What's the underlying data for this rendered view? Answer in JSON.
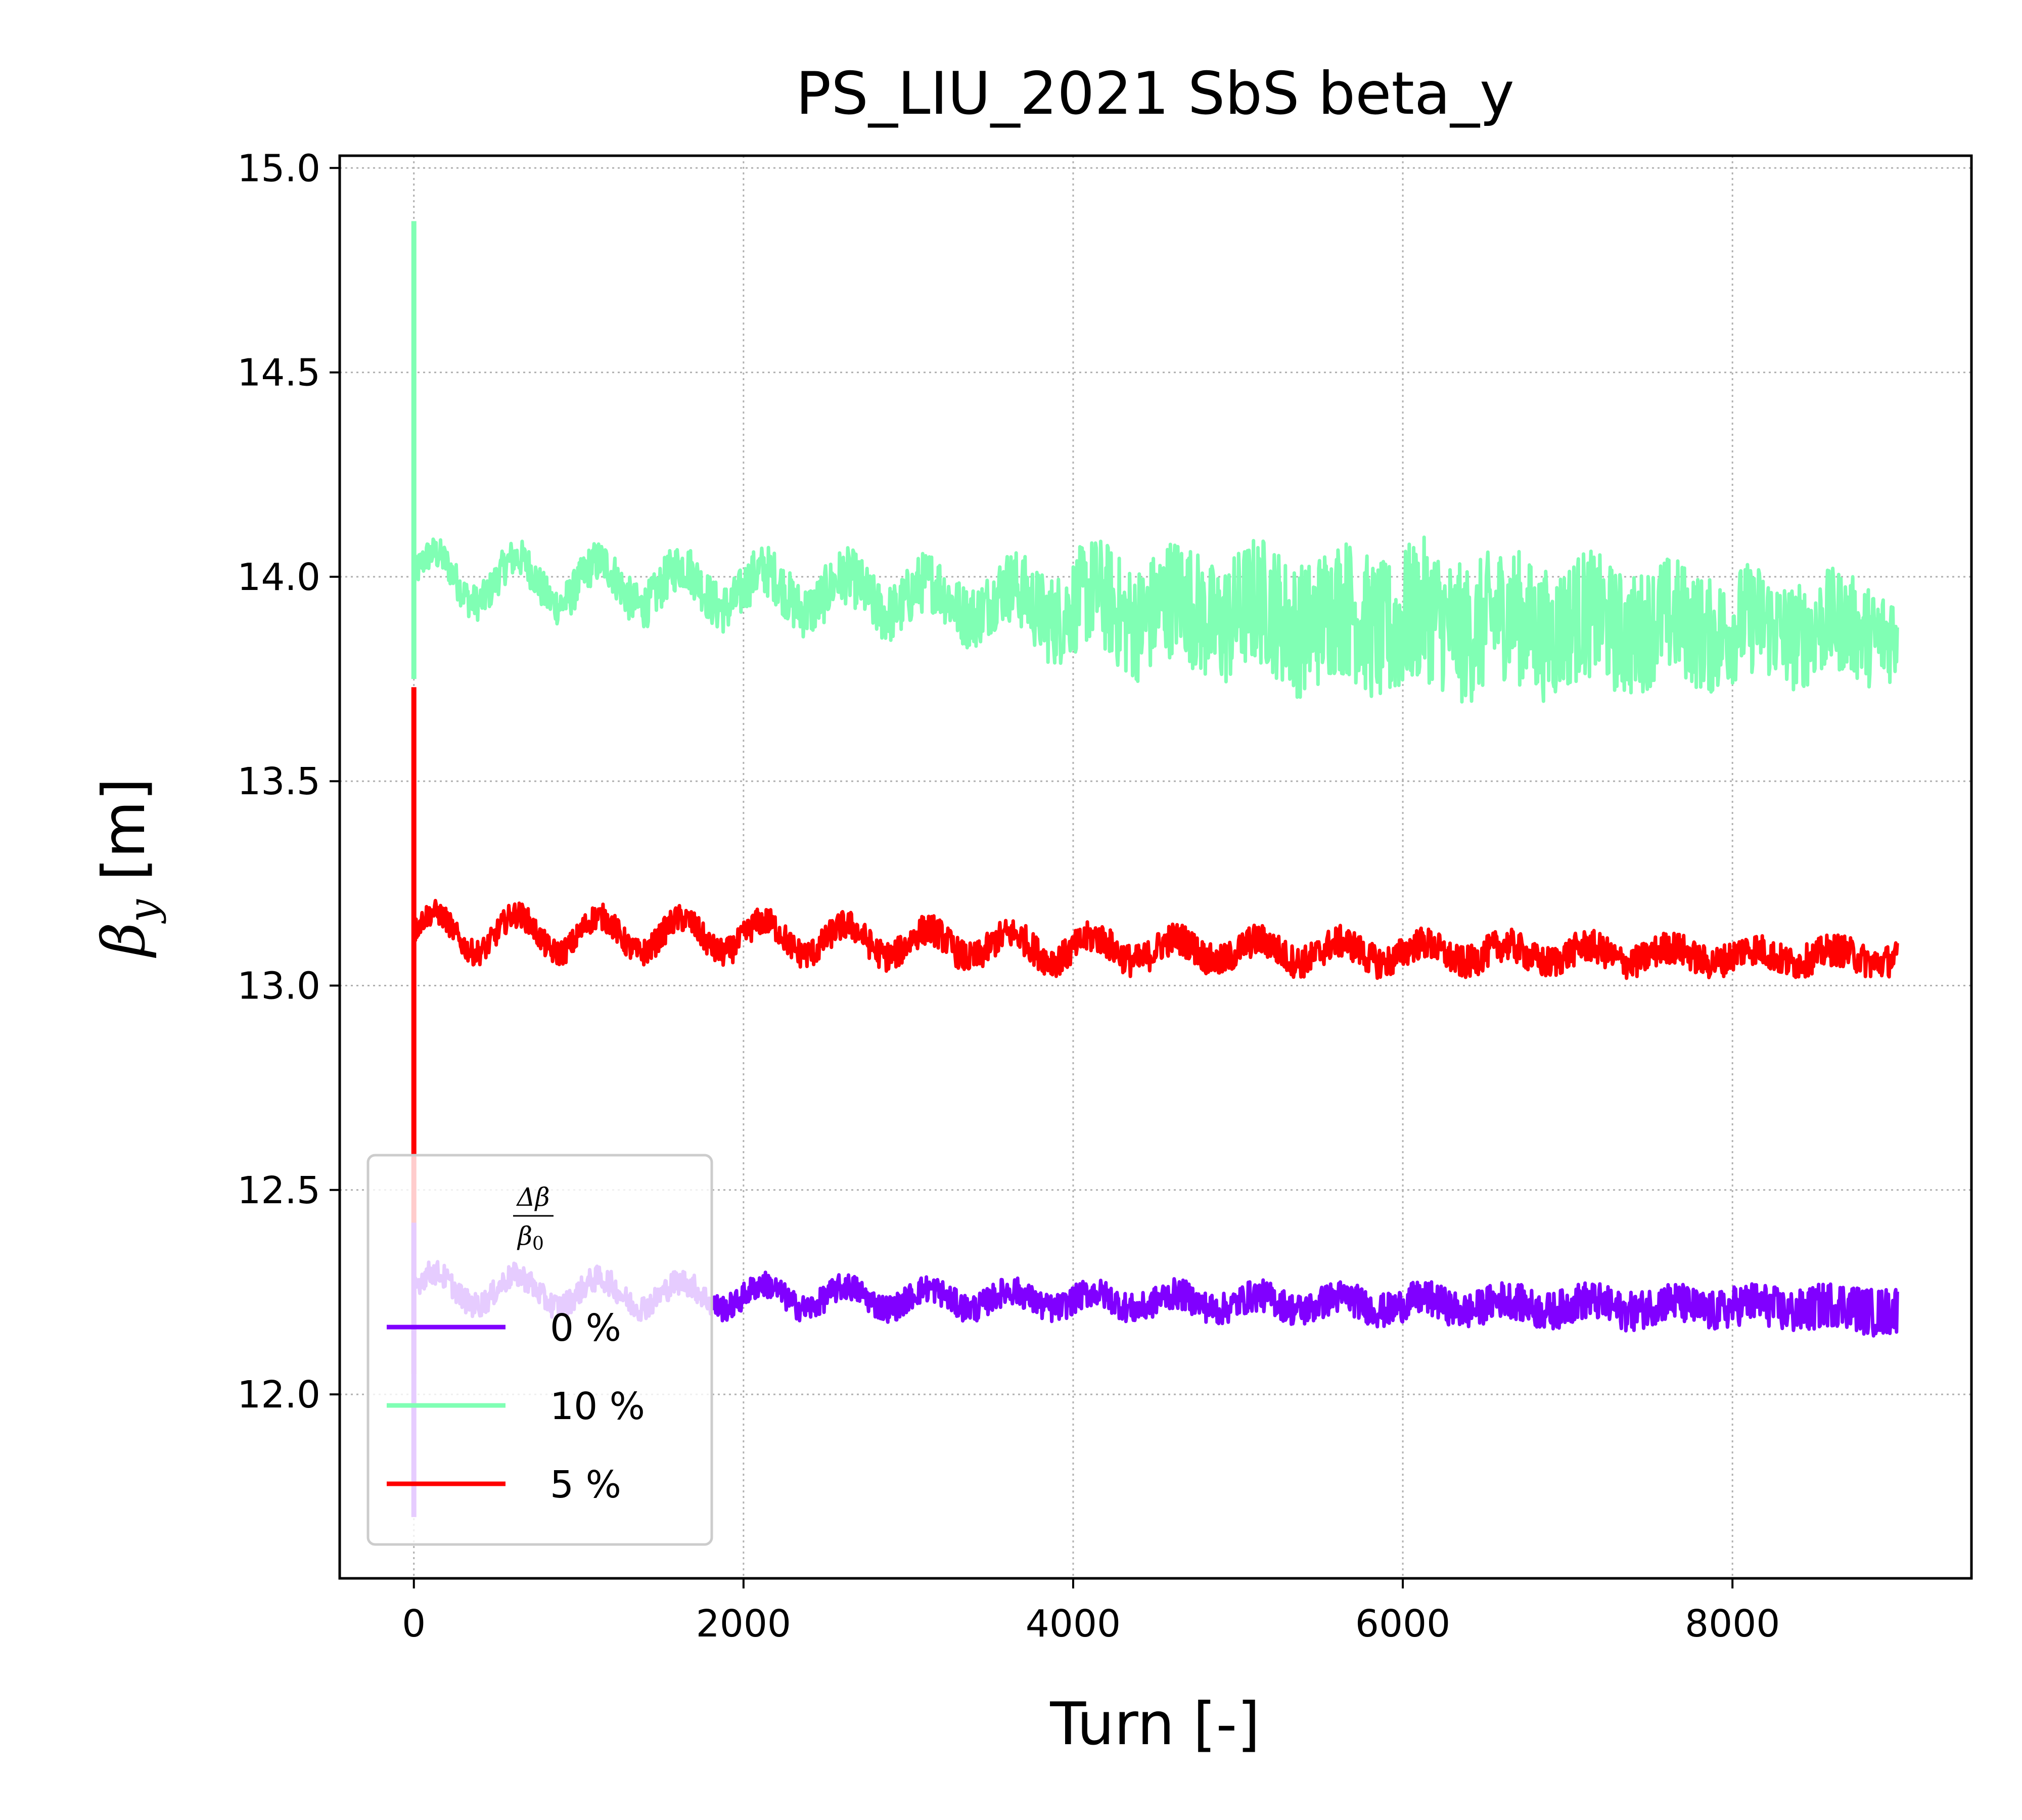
{
  "chart_data": {
    "type": "line",
    "title": "PS_LIU_2021 SbS beta_y",
    "xlabel": "Turn [-]",
    "ylabel": {
      "symbol": "β",
      "subscript": "y",
      "unit": " [m]"
    },
    "xlim": [
      -450,
      9450
    ],
    "ylim": [
      11.55,
      15.03
    ],
    "xticks": [
      0,
      2000,
      4000,
      6000,
      8000
    ],
    "xtick_labels": [
      "0",
      "2000",
      "4000",
      "6000",
      "8000"
    ],
    "yticks": [
      12.0,
      12.5,
      13.0,
      13.5,
      14.0,
      14.5,
      15.0
    ],
    "ytick_labels": [
      "12.0",
      "12.5",
      "13.0",
      "13.5",
      "14.0",
      "14.5",
      "15.0"
    ],
    "grid": true,
    "legend": {
      "placement": "lower-left",
      "title": {
        "num": "Δβ",
        "den": "β",
        "den_sub": "0"
      }
    },
    "series": [
      {
        "name": "0 %",
        "color": "#8000ff",
        "initial": {
          "x": 0,
          "y_range": [
            11.7,
            12.42
          ]
        },
        "x_end": 9000,
        "mean": [
          [
            0,
            12.26
          ],
          [
            2000,
            12.24
          ],
          [
            4000,
            12.23
          ],
          [
            6000,
            12.22
          ],
          [
            9000,
            12.21
          ]
        ],
        "band_half_width": [
          [
            0,
            0.03
          ],
          [
            4000,
            0.035
          ],
          [
            8000,
            0.05
          ],
          [
            9000,
            0.06
          ]
        ],
        "oscillation": {
          "period": 500,
          "amplitude": [
            [
              0,
              0.04
            ],
            [
              4000,
              0.02
            ],
            [
              9000,
              0.01
            ]
          ]
        },
        "overall_range": [
          12.12,
          12.33
        ]
      },
      {
        "name": "10 %",
        "color": "#80ffb4",
        "initial": {
          "x": 0,
          "y_range": [
            13.75,
            14.87
          ]
        },
        "x_end": 9000,
        "mean": [
          [
            0,
            14.0
          ],
          [
            2000,
            13.97
          ],
          [
            4000,
            13.93
          ],
          [
            6000,
            13.89
          ],
          [
            9000,
            13.87
          ]
        ],
        "band_half_width": [
          [
            0,
            0.04
          ],
          [
            3500,
            0.08
          ],
          [
            4200,
            0.14
          ],
          [
            6000,
            0.18
          ],
          [
            9000,
            0.12
          ]
        ],
        "oscillation": {
          "period": 500,
          "amplitude": [
            [
              0,
              0.06
            ],
            [
              3500,
              0.04
            ],
            [
              9000,
              0.02
            ]
          ]
        },
        "overall_range": [
          13.63,
          14.15
        ]
      },
      {
        "name": "5 %",
        "color": "#ff0000",
        "initial": {
          "x": 0,
          "y_range": [
            12.05,
            13.73
          ]
        },
        "x_end": 9000,
        "mean": [
          [
            0,
            13.13
          ],
          [
            2000,
            13.12
          ],
          [
            4000,
            13.09
          ],
          [
            6000,
            13.08
          ],
          [
            9000,
            13.07
          ]
        ],
        "band_half_width": [
          [
            0,
            0.03
          ],
          [
            4000,
            0.04
          ],
          [
            9000,
            0.04
          ]
        ],
        "oscillation": {
          "period": 500,
          "amplitude": [
            [
              0,
              0.05
            ],
            [
              4000,
              0.03
            ],
            [
              9000,
              0.015
            ]
          ]
        },
        "overall_range": [
          12.98,
          13.21
        ]
      }
    ]
  }
}
